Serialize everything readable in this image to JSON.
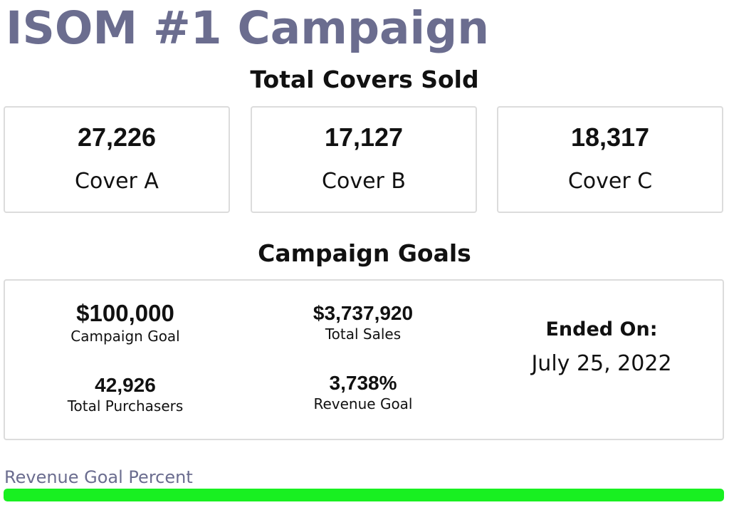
{
  "title": "ISOM #1 Campaign",
  "covers": {
    "heading": "Total Covers Sold",
    "items": [
      {
        "value": "27,226",
        "label": "Cover A"
      },
      {
        "value": "17,127",
        "label": "Cover B"
      },
      {
        "value": "18,317",
        "label": "Cover C"
      }
    ]
  },
  "goals": {
    "heading": "Campaign Goals",
    "campaign_goal": {
      "value": "$100,000",
      "label": "Campaign Goal"
    },
    "total_sales": {
      "value": "$3,737,920",
      "label": "Total Sales"
    },
    "total_purchasers": {
      "value": "42,926",
      "label": "Total Purchasers"
    },
    "revenue_goal": {
      "value": "3,738%",
      "label": "Revenue Goal"
    },
    "ended": {
      "label": "Ended On:",
      "date": "July 25, 2022"
    }
  },
  "progress": {
    "label": "Revenue Goal Percent",
    "fraction": 1.0,
    "color": "#18f021"
  },
  "colors": {
    "title": "#6b6d8f",
    "border": "#dcdcdc"
  }
}
